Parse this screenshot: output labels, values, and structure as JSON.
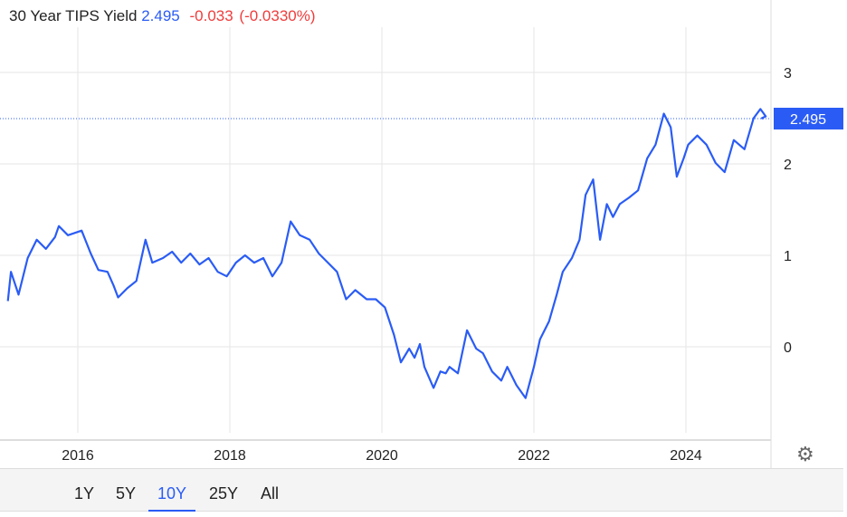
{
  "header": {
    "title": "30 Year TIPS Yield",
    "value": "2.495",
    "change": "-0.033",
    "change_pct": "(-0.0330%)"
  },
  "colors": {
    "line": "#2a5cf5",
    "negative": "#f03c3c"
  },
  "chart_data": {
    "type": "line",
    "title": "30 Year TIPS Yield",
    "xlabel": "",
    "ylabel": "",
    "xlim": [
      2015.0,
      2025.05
    ],
    "ylim": [
      -0.8,
      3.5
    ],
    "xticks": [
      "2016",
      "2018",
      "2020",
      "2022",
      "2024"
    ],
    "yticks": [
      "0",
      "1",
      "2",
      "3"
    ],
    "grid": true,
    "current_value": 2.495,
    "current_label": "2.495",
    "x": [
      2015.08,
      2015.12,
      2015.22,
      2015.34,
      2015.46,
      2015.58,
      2015.7,
      2015.75,
      2015.87,
      2016.05,
      2016.17,
      2016.27,
      2016.39,
      2016.47,
      2016.53,
      2016.65,
      2016.77,
      2016.89,
      2016.98,
      2017.12,
      2017.24,
      2017.36,
      2017.48,
      2017.6,
      2017.72,
      2017.84,
      2017.96,
      2018.08,
      2018.2,
      2018.32,
      2018.44,
      2018.56,
      2018.68,
      2018.8,
      2018.92,
      2019.05,
      2019.17,
      2019.29,
      2019.41,
      2019.53,
      2019.65,
      2019.8,
      2019.92,
      2020.04,
      2020.16,
      2020.25,
      2020.36,
      2020.43,
      2020.5,
      2020.56,
      2020.68,
      2020.77,
      2020.84,
      2020.89,
      2021.0,
      2021.12,
      2021.24,
      2021.33,
      2021.45,
      2021.57,
      2021.65,
      2021.77,
      2021.89,
      2022.0,
      2022.08,
      2022.2,
      2022.3,
      2022.38,
      2022.5,
      2022.6,
      2022.68,
      2022.78,
      2022.87,
      2022.96,
      2023.04,
      2023.13,
      2023.25,
      2023.37,
      2023.49,
      2023.6,
      2023.71,
      2023.8,
      2023.88,
      2023.97,
      2024.03,
      2024.15,
      2024.27,
      2024.39,
      2024.51,
      2024.63,
      2024.77,
      2024.89,
      2024.98,
      2025.05,
      2025.0,
      2025.02
    ],
    "values": [
      0.5,
      0.82,
      0.57,
      0.97,
      1.17,
      1.07,
      1.2,
      1.32,
      1.22,
      1.27,
      1.02,
      0.84,
      0.82,
      0.67,
      0.54,
      0.64,
      0.72,
      1.17,
      0.92,
      0.97,
      1.04,
      0.92,
      1.02,
      0.9,
      0.97,
      0.82,
      0.77,
      0.92,
      1.0,
      0.92,
      0.97,
      0.77,
      0.92,
      1.37,
      1.22,
      1.17,
      1.02,
      0.92,
      0.82,
      0.52,
      0.62,
      0.52,
      0.52,
      0.43,
      0.13,
      -0.17,
      -0.02,
      -0.12,
      0.03,
      -0.22,
      -0.45,
      -0.27,
      -0.29,
      -0.22,
      -0.29,
      0.18,
      -0.02,
      -0.07,
      -0.27,
      -0.37,
      -0.22,
      -0.42,
      -0.56,
      -0.22,
      0.08,
      0.28,
      0.57,
      0.82,
      0.97,
      1.17,
      1.66,
      1.83,
      1.17,
      1.56,
      1.42,
      1.56,
      1.63,
      1.71,
      2.06,
      2.21,
      2.55,
      2.4,
      1.86,
      2.06,
      2.21,
      2.31,
      2.21,
      2.01,
      1.91,
      2.26,
      2.16,
      2.5,
      2.6,
      2.52,
      2.5,
      2.495
    ]
  },
  "ranges": [
    {
      "label": "1Y"
    },
    {
      "label": "5Y"
    },
    {
      "label": "10Y",
      "active": true
    },
    {
      "label": "25Y"
    },
    {
      "label": "All"
    }
  ],
  "settings_icon": "gear-icon"
}
